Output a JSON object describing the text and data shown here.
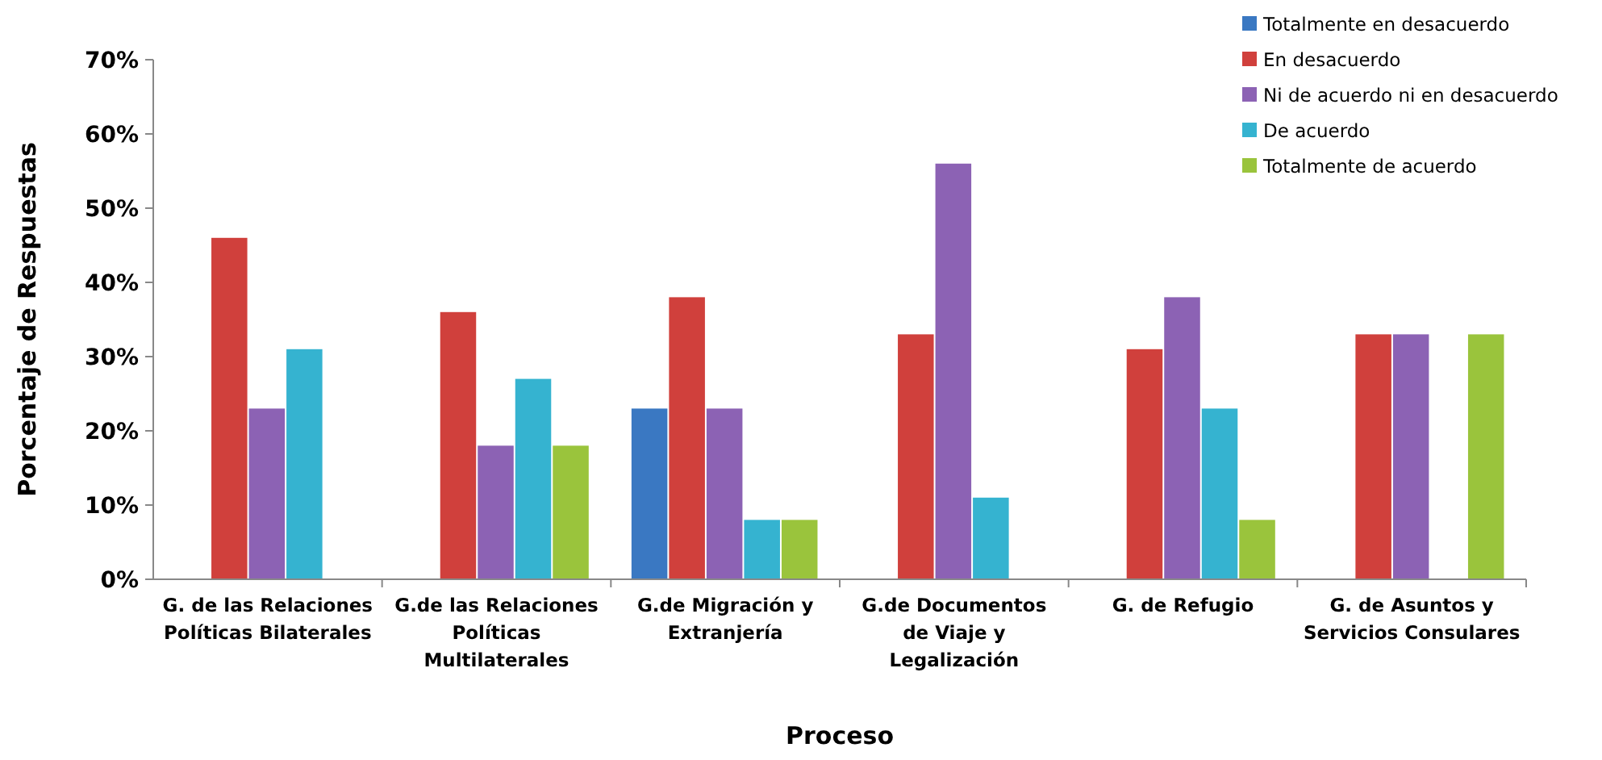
{
  "chart_data": {
    "type": "bar",
    "xlabel": "Proceso",
    "ylabel": "Porcentaje de Respuestas",
    "categories": [
      "G. de las Relaciones\nPolíticas Bilaterales",
      "G.de las Relaciones\nPolíticas\nMultilaterales",
      "G.de Migración y\nExtranjería",
      "G.de Documentos\nde Viaje y\nLegalización",
      "G. de Refugio",
      "G. de Asuntos y\nServicios Consulares"
    ],
    "series": [
      {
        "name": "Totalmente en desacuerdo",
        "color": "#3a78c2",
        "values": [
          0,
          0,
          23,
          0,
          0,
          0
        ]
      },
      {
        "name": "En desacuerdo",
        "color": "#d0403c",
        "values": [
          46,
          36,
          38,
          33,
          31,
          33
        ]
      },
      {
        "name": "Ni de acuerdo ni en desacuerdo",
        "color": "#8c62b4",
        "values": [
          23,
          18,
          23,
          56,
          38,
          33
        ]
      },
      {
        "name": "De acuerdo",
        "color": "#35b3d0",
        "values": [
          31,
          27,
          8,
          11,
          23,
          0
        ]
      },
      {
        "name": "Totalmente de acuerdo",
        "color": "#9ac43c",
        "values": [
          0,
          18,
          8,
          0,
          8,
          33
        ]
      }
    ],
    "ylim": [
      0,
      70
    ],
    "yticks": [
      {
        "value": 0,
        "label": "0%"
      },
      {
        "value": 10,
        "label": "10%"
      },
      {
        "value": 20,
        "label": "20%"
      },
      {
        "value": 30,
        "label": "30%"
      },
      {
        "value": 40,
        "label": "40%"
      },
      {
        "value": 50,
        "label": "50%"
      },
      {
        "value": 60,
        "label": "60%"
      },
      {
        "value": 70,
        "label": "70%"
      }
    ],
    "grid": false,
    "legend": "top right"
  }
}
